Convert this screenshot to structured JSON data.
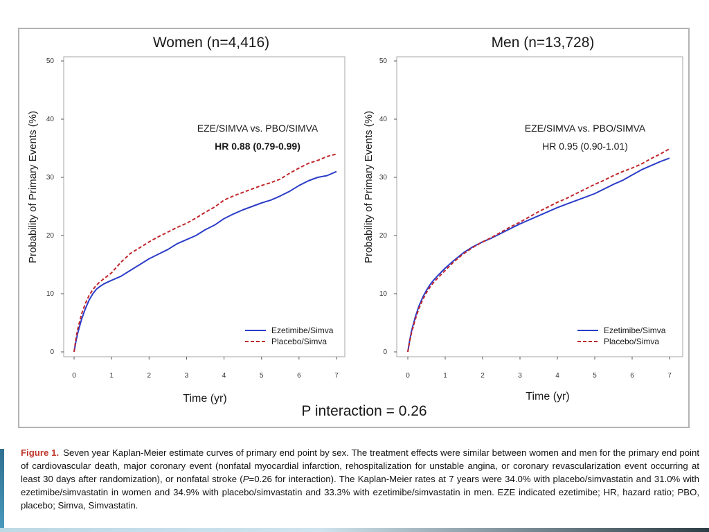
{
  "chart_data": [
    {
      "type": "line",
      "title": "Women (n=4,416)",
      "xlabel": "Time (yr)",
      "ylabel": "Probability of Primary Events (%)",
      "xlim": [
        0,
        7
      ],
      "ylim": [
        0,
        50
      ],
      "xticks": [
        "0",
        "1",
        "2",
        "3",
        "4",
        "5",
        "6",
        "7"
      ],
      "yticks": [
        "0",
        "10",
        "20",
        "30",
        "40",
        "50"
      ],
      "annotation": [
        "EZE/SIMVA vs. PBO/SIMVA",
        "HR 0.88 (0.79-0.99)"
      ],
      "legend_position": "bottom-right",
      "series": [
        {
          "name": "Ezetimibe/Simva",
          "color": "#2b3dc8",
          "style": "solid",
          "x": [
            0,
            0.05,
            0.1,
            0.2,
            0.3,
            0.4,
            0.5,
            0.6,
            0.7,
            0.8,
            1.0,
            1.25,
            1.5,
            1.75,
            2.0,
            2.25,
            2.5,
            2.75,
            3.0,
            3.25,
            3.5,
            3.75,
            4.0,
            4.25,
            4.5,
            4.75,
            5.0,
            5.25,
            5.5,
            5.75,
            6.0,
            6.25,
            6.5,
            6.75,
            7.0
          ],
          "y": [
            0,
            1.8,
            3.3,
            5.6,
            7.4,
            8.9,
            10.0,
            10.8,
            11.3,
            11.7,
            12.3,
            13.0,
            14.0,
            15.0,
            16.0,
            16.8,
            17.6,
            18.6,
            19.3,
            20.0,
            21.0,
            21.8,
            22.9,
            23.7,
            24.4,
            25.0,
            25.6,
            26.1,
            26.8,
            27.6,
            28.6,
            29.4,
            30.0,
            30.3,
            31.0
          ]
        },
        {
          "name": "Placebo/Simva",
          "color": "#c0262c",
          "style": "dashed",
          "x": [
            0,
            0.05,
            0.1,
            0.2,
            0.3,
            0.4,
            0.5,
            0.6,
            0.7,
            0.8,
            1.0,
            1.25,
            1.5,
            1.75,
            2.0,
            2.25,
            2.5,
            2.75,
            3.0,
            3.25,
            3.5,
            3.75,
            4.0,
            4.25,
            4.5,
            4.75,
            5.0,
            5.25,
            5.5,
            5.75,
            6.0,
            6.25,
            6.5,
            6.75,
            7.0
          ],
          "y": [
            0,
            2.3,
            4.0,
            6.5,
            8.3,
            9.7,
            10.7,
            11.5,
            12.1,
            12.6,
            13.6,
            15.4,
            16.9,
            17.9,
            18.9,
            19.8,
            20.6,
            21.4,
            22.1,
            23.0,
            24.0,
            24.9,
            26.1,
            26.8,
            27.4,
            28.0,
            28.6,
            29.1,
            29.7,
            30.7,
            31.6,
            32.4,
            32.9,
            33.6,
            34.0
          ]
        }
      ]
    },
    {
      "type": "line",
      "title": "Men (n=13,728)",
      "xlabel": "Time (yr)",
      "ylabel": "Probability of Primary Events (%)",
      "xlim": [
        0,
        7
      ],
      "ylim": [
        0,
        50
      ],
      "xticks": [
        "0",
        "1",
        "2",
        "3",
        "4",
        "5",
        "6",
        "7"
      ],
      "yticks": [
        "0",
        "10",
        "20",
        "30",
        "40",
        "50"
      ],
      "annotation": [
        "EZE/SIMVA vs. PBO/SIMVA",
        "HR 0.95 (0.90-1.01)"
      ],
      "legend_position": "bottom-right",
      "series": [
        {
          "name": "Ezetimibe/Simva",
          "color": "#2b3dc8",
          "style": "solid",
          "x": [
            0,
            0.05,
            0.1,
            0.2,
            0.3,
            0.4,
            0.5,
            0.6,
            0.7,
            0.8,
            1.0,
            1.25,
            1.5,
            1.75,
            2.0,
            2.25,
            2.5,
            2.75,
            3.0,
            3.25,
            3.5,
            3.75,
            4.0,
            4.25,
            4.5,
            4.75,
            5.0,
            5.25,
            5.5,
            5.75,
            6.0,
            6.25,
            6.5,
            6.75,
            7.0
          ],
          "y": [
            0,
            2.0,
            3.6,
            6.0,
            7.9,
            9.4,
            10.6,
            11.6,
            12.4,
            13.1,
            14.4,
            15.8,
            17.1,
            18.1,
            18.9,
            19.6,
            20.4,
            21.2,
            22.0,
            22.7,
            23.4,
            24.1,
            24.8,
            25.4,
            26.0,
            26.6,
            27.2,
            28.0,
            28.8,
            29.5,
            30.4,
            31.3,
            32.0,
            32.7,
            33.3
          ]
        },
        {
          "name": "Placebo/Simva",
          "color": "#c0262c",
          "style": "dashed",
          "x": [
            0,
            0.05,
            0.1,
            0.2,
            0.3,
            0.4,
            0.5,
            0.6,
            0.7,
            0.8,
            1.0,
            1.25,
            1.5,
            1.75,
            2.0,
            2.25,
            2.5,
            2.75,
            3.0,
            3.25,
            3.5,
            3.75,
            4.0,
            4.25,
            4.5,
            4.75,
            5.0,
            5.25,
            5.5,
            5.75,
            6.0,
            6.25,
            6.5,
            6.75,
            7.0
          ],
          "y": [
            0,
            1.8,
            3.3,
            5.6,
            7.5,
            9.0,
            10.2,
            11.2,
            12.0,
            12.7,
            14.0,
            15.6,
            16.9,
            18.0,
            18.9,
            19.7,
            20.6,
            21.5,
            22.3,
            23.2,
            24.1,
            24.9,
            25.7,
            26.4,
            27.2,
            28.0,
            28.8,
            29.5,
            30.3,
            31.0,
            31.6,
            32.3,
            33.2,
            34.0,
            34.9
          ]
        }
      ]
    }
  ],
  "p_interaction": "P interaction = 0.26",
  "caption": {
    "label": "Figure 1.",
    "text_before_p": "Seven year Kaplan-Meier estimate curves of primary end point by sex. The treatment effects were similar between women and men for the primary end point of cardiovascular death, major coronary event (nonfatal myocardial infarction, rehospitalization for unstable angina, or coronary revascularization event occurring at least 30 days after randomization), or nonfatal stroke (",
    "p_symbol": "P",
    "text_after_p": "=0.26 for interaction). The Kaplan-Meier rates at 7 years were 34.0% with placebo/simvastatin and 31.0% with ezetimibe/simvastatin in women and 34.9% with placebo/simvastatin and 33.3% with ezetimibe/simvastatin in men. EZE indicated ezetimibe; HR, hazard ratio; PBO, placebo; Simva, Simvastatin."
  }
}
